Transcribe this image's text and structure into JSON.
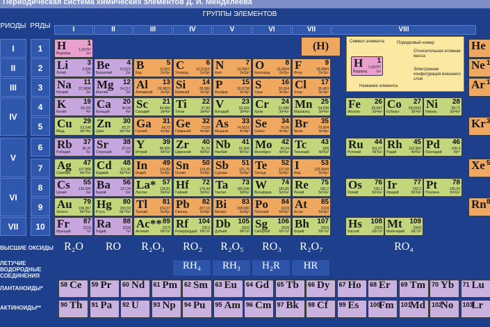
{
  "title": "Периодическая система химических элементов Д. И. Менделеева",
  "headers": {
    "periods": "РИОДЫ",
    "rows": "РЯДЫ",
    "groups": "ГРУППЫ ЭЛЕМЕНТОВ"
  },
  "groups": [
    "I",
    "II",
    "III",
    "IV",
    "V",
    "VI",
    "VII",
    "VIII"
  ],
  "periods": [
    "I",
    "II",
    "III",
    "IV",
    "V",
    "VI",
    "VII"
  ],
  "rows": [
    "1",
    "2",
    "3",
    "4",
    "5",
    "6",
    "7",
    "8",
    "9",
    "10"
  ],
  "legend": {
    "symbol": "Символ элемента",
    "number": "Порядковый номер",
    "mass": "Относительная атомная масса",
    "config": "Электронная конфигурация внешнего слоя",
    "name": "Название элемента",
    "sample_symbol": "H",
    "sample_number": "1",
    "sample_mass": "1,00797",
    "sample_name": "Водород",
    "sample_cfg": "1s¹"
  },
  "h_paren": "(H)",
  "elements": [
    {
      "sym": "H",
      "num": "1",
      "mass": "1,00797",
      "name": "Водород",
      "cfg": "1s¹",
      "cls": "s"
    },
    {
      "sym": "Li",
      "num": "3",
      "mass": "6,939",
      "name": "Литий",
      "cfg": "2s¹",
      "cls": "s lilac"
    },
    {
      "sym": "Be",
      "num": "4",
      "mass": "9,0122",
      "name": "Бериллий",
      "cfg": "2s²",
      "cls": "s lilac"
    },
    {
      "sym": "B",
      "num": "5",
      "mass": "10,811",
      "name": "Бор",
      "cfg": "2s²2p¹",
      "cls": "p"
    },
    {
      "sym": "C",
      "num": "6",
      "mass": "12,01115",
      "name": "Углерод",
      "cfg": "2s²2p²",
      "cls": "p"
    },
    {
      "sym": "N",
      "num": "7",
      "mass": "14,0067",
      "name": "Азот",
      "cfg": "2s²2p³",
      "cls": "p"
    },
    {
      "sym": "O",
      "num": "8",
      "mass": "15,9994",
      "name": "Кислород",
      "cfg": "2s²2p⁴",
      "cls": "p"
    },
    {
      "sym": "F",
      "num": "9",
      "mass": "18,9984",
      "name": "Фтор",
      "cfg": "2s²2p⁵",
      "cls": "p"
    },
    {
      "sym": "Na",
      "num": "11",
      "mass": "22,9898",
      "name": "Натрий",
      "cfg": "3s¹",
      "cls": "s lilac"
    },
    {
      "sym": "Mg",
      "num": "12",
      "mass": "24,312",
      "name": "Магний",
      "cfg": "3s²",
      "cls": "s lilac"
    },
    {
      "sym": "Al",
      "num": "13",
      "mass": "26,9815",
      "name": "Алюминий",
      "cfg": "3s²3p¹",
      "cls": "p"
    },
    {
      "sym": "Si",
      "num": "14",
      "mass": "28,086",
      "name": "Кремний",
      "cfg": "3s²3p²",
      "cls": "p"
    },
    {
      "sym": "P",
      "num": "15",
      "mass": "30,9738",
      "name": "Фосфор",
      "cfg": "3s²3p³",
      "cls": "p"
    },
    {
      "sym": "S",
      "num": "16",
      "mass": "32,064",
      "name": "Сера",
      "cfg": "3s²3p⁴",
      "cls": "p"
    },
    {
      "sym": "Cl",
      "num": "17",
      "mass": "35,453",
      "name": "Хлор",
      "cfg": "3s²3p⁵",
      "cls": "p"
    },
    {
      "sym": "K",
      "num": "19",
      "mass": "39,102",
      "name": "Калий",
      "cfg": "4s¹",
      "cls": "s lilac"
    },
    {
      "sym": "Ca",
      "num": "20",
      "mass": "40,08",
      "name": "Кальций",
      "cfg": "4s²",
      "cls": "s lilac"
    },
    {
      "sym": "Sc",
      "num": "21",
      "mass": "44,956",
      "name": "Скандий",
      "cfg": "3d¹4s²",
      "cls": "d"
    },
    {
      "sym": "Ti",
      "num": "22",
      "mass": "47,90",
      "name": "Титан",
      "cfg": "3d²4s²",
      "cls": "d"
    },
    {
      "sym": "V",
      "num": "23",
      "mass": "50,942",
      "name": "Ванадий",
      "cfg": "3d³4s²",
      "cls": "d"
    },
    {
      "sym": "Cr",
      "num": "24",
      "mass": "51,996",
      "name": "Хром",
      "cfg": "3d⁵4s¹",
      "cls": "d"
    },
    {
      "sym": "Mn",
      "num": "25",
      "mass": "54,938",
      "name": "Марганец",
      "cfg": "3d⁵4s²",
      "cls": "d"
    },
    {
      "sym": "Fe",
      "num": "26",
      "mass": "55,847",
      "name": "Железо",
      "cfg": "3d⁶4s²",
      "cls": "d"
    },
    {
      "sym": "Co",
      "num": "27",
      "mass": "58,9332",
      "name": "Кобальт",
      "cfg": "3d⁷4s²",
      "cls": "d"
    },
    {
      "sym": "Ni",
      "num": "28",
      "mass": "58,71",
      "name": "Никель",
      "cfg": "3d⁸4s²",
      "cls": "d"
    },
    {
      "sym": "Cu",
      "num": "29",
      "mass": "63,546",
      "name": "Медь",
      "cfg": "3d¹⁰4s¹",
      "cls": "d"
    },
    {
      "sym": "Zn",
      "num": "30",
      "mass": "65,37",
      "name": "Цинк",
      "cfg": "3d¹⁰4s²",
      "cls": "d"
    },
    {
      "sym": "Ga",
      "num": "31",
      "mass": "69,72",
      "name": "Галлий",
      "cfg": "4s²4p¹",
      "cls": "p"
    },
    {
      "sym": "Ge",
      "num": "32",
      "mass": "72,59",
      "name": "Германий",
      "cfg": "4s²4p²",
      "cls": "p"
    },
    {
      "sym": "As",
      "num": "33",
      "mass": "74,9216",
      "name": "Мышьяк",
      "cfg": "4s²4p³",
      "cls": "p"
    },
    {
      "sym": "Se",
      "num": "34",
      "mass": "78,96",
      "name": "Селен",
      "cfg": "4s²4p⁴",
      "cls": "p"
    },
    {
      "sym": "Br",
      "num": "35",
      "mass": "79,904",
      "name": "Бром",
      "cfg": "4s²4p⁵",
      "cls": "p"
    },
    {
      "sym": "Rb",
      "num": "37",
      "mass": "85,47",
      "name": "Рубидий",
      "cfg": "5s¹",
      "cls": "s lilac"
    },
    {
      "sym": "Sr",
      "num": "38",
      "mass": "87,62",
      "name": "Стронций",
      "cfg": "5s²",
      "cls": "s lilac"
    },
    {
      "sym": "Y",
      "num": "39",
      "mass": "88,905",
      "name": "Иттрий",
      "cfg": "4d¹5s²",
      "cls": "d"
    },
    {
      "sym": "Zr",
      "num": "40",
      "mass": "91,22",
      "name": "Цирконий",
      "cfg": "4d²5s²",
      "cls": "d"
    },
    {
      "sym": "Nb",
      "num": "41",
      "mass": "92,906",
      "name": "Ниобий",
      "cfg": "4d⁴5s¹",
      "cls": "d"
    },
    {
      "sym": "Mo",
      "num": "42",
      "mass": "95,94",
      "name": "Молибден",
      "cfg": "4d⁵5s¹",
      "cls": "d"
    },
    {
      "sym": "Tc",
      "num": "43",
      "mass": "[99]",
      "name": "Технеций",
      "cfg": "4d⁵5s²",
      "cls": "d"
    },
    {
      "sym": "Ru",
      "num": "44",
      "mass": "101,07",
      "name": "Рутений",
      "cfg": "4d⁷5s¹",
      "cls": "d"
    },
    {
      "sym": "Rh",
      "num": "45",
      "mass": "102,905",
      "name": "Родий",
      "cfg": "4d⁸5s¹",
      "cls": "d"
    },
    {
      "sym": "Pd",
      "num": "46",
      "mass": "106,4",
      "name": "Палладий",
      "cfg": "4d¹⁰",
      "cls": "d"
    },
    {
      "sym": "Ag",
      "num": "47",
      "mass": "107,868",
      "name": "Серебро",
      "cfg": "4d¹⁰5s¹",
      "cls": "d"
    },
    {
      "sym": "Cd",
      "num": "48",
      "mass": "112,40",
      "name": "Кадмий",
      "cfg": "4d¹⁰5s²",
      "cls": "d"
    },
    {
      "sym": "In",
      "num": "49",
      "mass": "114,82",
      "name": "Индий",
      "cfg": "5s²5p¹",
      "cls": "p"
    },
    {
      "sym": "Sn",
      "num": "50",
      "mass": "118,69",
      "name": "Олово",
      "cfg": "5s²5p²",
      "cls": "p"
    },
    {
      "sym": "Sb",
      "num": "51",
      "mass": "121,75",
      "name": "Сурьма",
      "cfg": "5s²5p³",
      "cls": "p"
    },
    {
      "sym": "Te",
      "num": "52",
      "mass": "127,60",
      "name": "Теллур",
      "cfg": "5s²5p⁴",
      "cls": "p"
    },
    {
      "sym": "I",
      "num": "53",
      "mass": "126,9044",
      "name": "Иод",
      "cfg": "5s²5p⁵",
      "cls": "p"
    },
    {
      "sym": "Cs",
      "num": "55",
      "mass": "132,905",
      "name": "Цезий",
      "cfg": "6s¹",
      "cls": "s lilac"
    },
    {
      "sym": "Ba",
      "num": "56",
      "mass": "137,34",
      "name": "Барий",
      "cfg": "6s²",
      "cls": "s lilac"
    },
    {
      "sym": "La*",
      "num": "57",
      "mass": "138,81",
      "name": "Лантан",
      "cfg": "5d¹6s²",
      "cls": "d"
    },
    {
      "sym": "Hf",
      "num": "72",
      "mass": "178,49",
      "name": "Гафний",
      "cfg": "5d²6s²",
      "cls": "d"
    },
    {
      "sym": "Ta",
      "num": "73",
      "mass": "180,948",
      "name": "Тантал",
      "cfg": "5d³6s²",
      "cls": "d"
    },
    {
      "sym": "W",
      "num": "74",
      "mass": "183,85",
      "name": "Вольфрам",
      "cfg": "5d⁴6s²",
      "cls": "d"
    },
    {
      "sym": "Re",
      "num": "75",
      "mass": "186,2",
      "name": "Рений",
      "cfg": "5d⁵6s²",
      "cls": "d"
    },
    {
      "sym": "Os",
      "num": "76",
      "mass": "190,2",
      "name": "Осмий",
      "cfg": "5d⁶6s²",
      "cls": "d"
    },
    {
      "sym": "Ir",
      "num": "77",
      "mass": "192,2",
      "name": "Иридий",
      "cfg": "5d⁷6s²",
      "cls": "d"
    },
    {
      "sym": "Pt",
      "num": "78",
      "mass": "195,09",
      "name": "Платина",
      "cfg": "5d⁹6s¹",
      "cls": "d"
    },
    {
      "sym": "Au",
      "num": "79",
      "mass": "196,967",
      "name": "Золото",
      "cfg": "5d¹⁰6s¹",
      "cls": "d"
    },
    {
      "sym": "Hg",
      "num": "80",
      "mass": "200,59",
      "name": "Ртуть",
      "cfg": "5d¹⁰6s²",
      "cls": "d"
    },
    {
      "sym": "Tl",
      "num": "81",
      "mass": "204,37",
      "name": "Таллий",
      "cfg": "6s²6p¹",
      "cls": "p"
    },
    {
      "sym": "Pb",
      "num": "82",
      "mass": "207,19",
      "name": "Свинец",
      "cfg": "6s²6p²",
      "cls": "p"
    },
    {
      "sym": "Bi",
      "num": "83",
      "mass": "208,980",
      "name": "Висмут",
      "cfg": "6s²6p³",
      "cls": "p"
    },
    {
      "sym": "Po",
      "num": "84",
      "mass": "[210]",
      "name": "Полоний",
      "cfg": "6s²6p⁴",
      "cls": "p"
    },
    {
      "sym": "At",
      "num": "85",
      "mass": "[210]",
      "name": "Астат",
      "cfg": "6s²6p⁵",
      "cls": "p"
    },
    {
      "sym": "Fr",
      "num": "87",
      "mass": "[223]",
      "name": "Франций",
      "cfg": "7s¹",
      "cls": "s lilac"
    },
    {
      "sym": "Ra",
      "num": "88",
      "mass": "[226]",
      "name": "Радий",
      "cfg": "7s²",
      "cls": "s lilac"
    },
    {
      "sym": "Ac**",
      "num": "89",
      "mass": "[227]",
      "name": "Актиний",
      "cfg": "6d¹7s²",
      "cls": "d"
    },
    {
      "sym": "Rf",
      "num": "104",
      "mass": "[261]",
      "name": "Резерфордий",
      "cfg": "6d²7s²",
      "cls": "d"
    },
    {
      "sym": "Db",
      "num": "105",
      "mass": "[262]",
      "name": "Дубний",
      "cfg": "6d³7s²",
      "cls": "d"
    },
    {
      "sym": "Sg",
      "num": "106",
      "mass": "[263]",
      "name": "Сиборгий",
      "cfg": "6d⁴7s²",
      "cls": "d"
    },
    {
      "sym": "Bh",
      "num": "107",
      "mass": "[262]",
      "name": "Борий",
      "cfg": "6d⁵7s²",
      "cls": "d"
    },
    {
      "sym": "Hs",
      "num": "108",
      "mass": "[265]",
      "name": "Хассий",
      "cfg": "6d⁶7s²",
      "cls": "d"
    },
    {
      "sym": "Mt",
      "num": "109",
      "mass": "[266]",
      "name": "Мейтнерий",
      "cfg": "6d⁷7s²",
      "cls": "d"
    },
    {
      "sym": "He",
      "num": "2",
      "mass": "",
      "name": "",
      "cfg": "",
      "cls": "p"
    },
    {
      "sym": "Ne",
      "num": "10",
      "mass": "",
      "name": "",
      "cfg": "",
      "cls": "p"
    },
    {
      "sym": "Ar",
      "num": "18",
      "mass": "",
      "name": "",
      "cfg": "",
      "cls": "p"
    },
    {
      "sym": "Kr",
      "num": "36",
      "mass": "",
      "name": "",
      "cfg": "",
      "cls": "p"
    },
    {
      "sym": "Xe",
      "num": "54",
      "mass": "",
      "name": "",
      "cfg": "",
      "cls": "p"
    },
    {
      "sym": "Rn",
      "num": "86",
      "mass": "",
      "name": "",
      "cfg": "",
      "cls": "p"
    }
  ],
  "oxides_label": "ВЫСШИЕ ОКСИДЫ",
  "oxides": [
    "R₂O",
    "RO",
    "R₂O₃",
    "RO₂",
    "R₂O₅",
    "RO₃",
    "R₂O₇",
    "RO₄"
  ],
  "hydrides_label": "ЛЕТУЧИЕ ВОДОРОДНЫЕ СОЕДИНЕНИЯ",
  "hydrides": [
    "RH₄",
    "RH₃",
    "H₂R",
    "HR"
  ],
  "lanthanoids_label": "ЛАНТАНОИДЫ*",
  "actinoids_label": "АКТИНОИДЫ**",
  "lanthanoids": [
    "58 Ce",
    "59 Pr",
    "60 Nd",
    "61 Pm",
    "62 Sm",
    "63 Eu",
    "64 Gd",
    "65 Tb",
    "66 Dy",
    "67 Ho",
    "68 Er",
    "69 Tm",
    "70 Yb",
    "71 Lu"
  ],
  "actinoids": [
    "90 Th",
    "91 Pa",
    "92 U",
    "93 Np",
    "94 Pu",
    "95 Am",
    "96 Cm",
    "97 Bk",
    "98 Cf",
    "99 Es",
    "100 Fm",
    "101 Md",
    "102 No",
    "103 Lr"
  ]
}
